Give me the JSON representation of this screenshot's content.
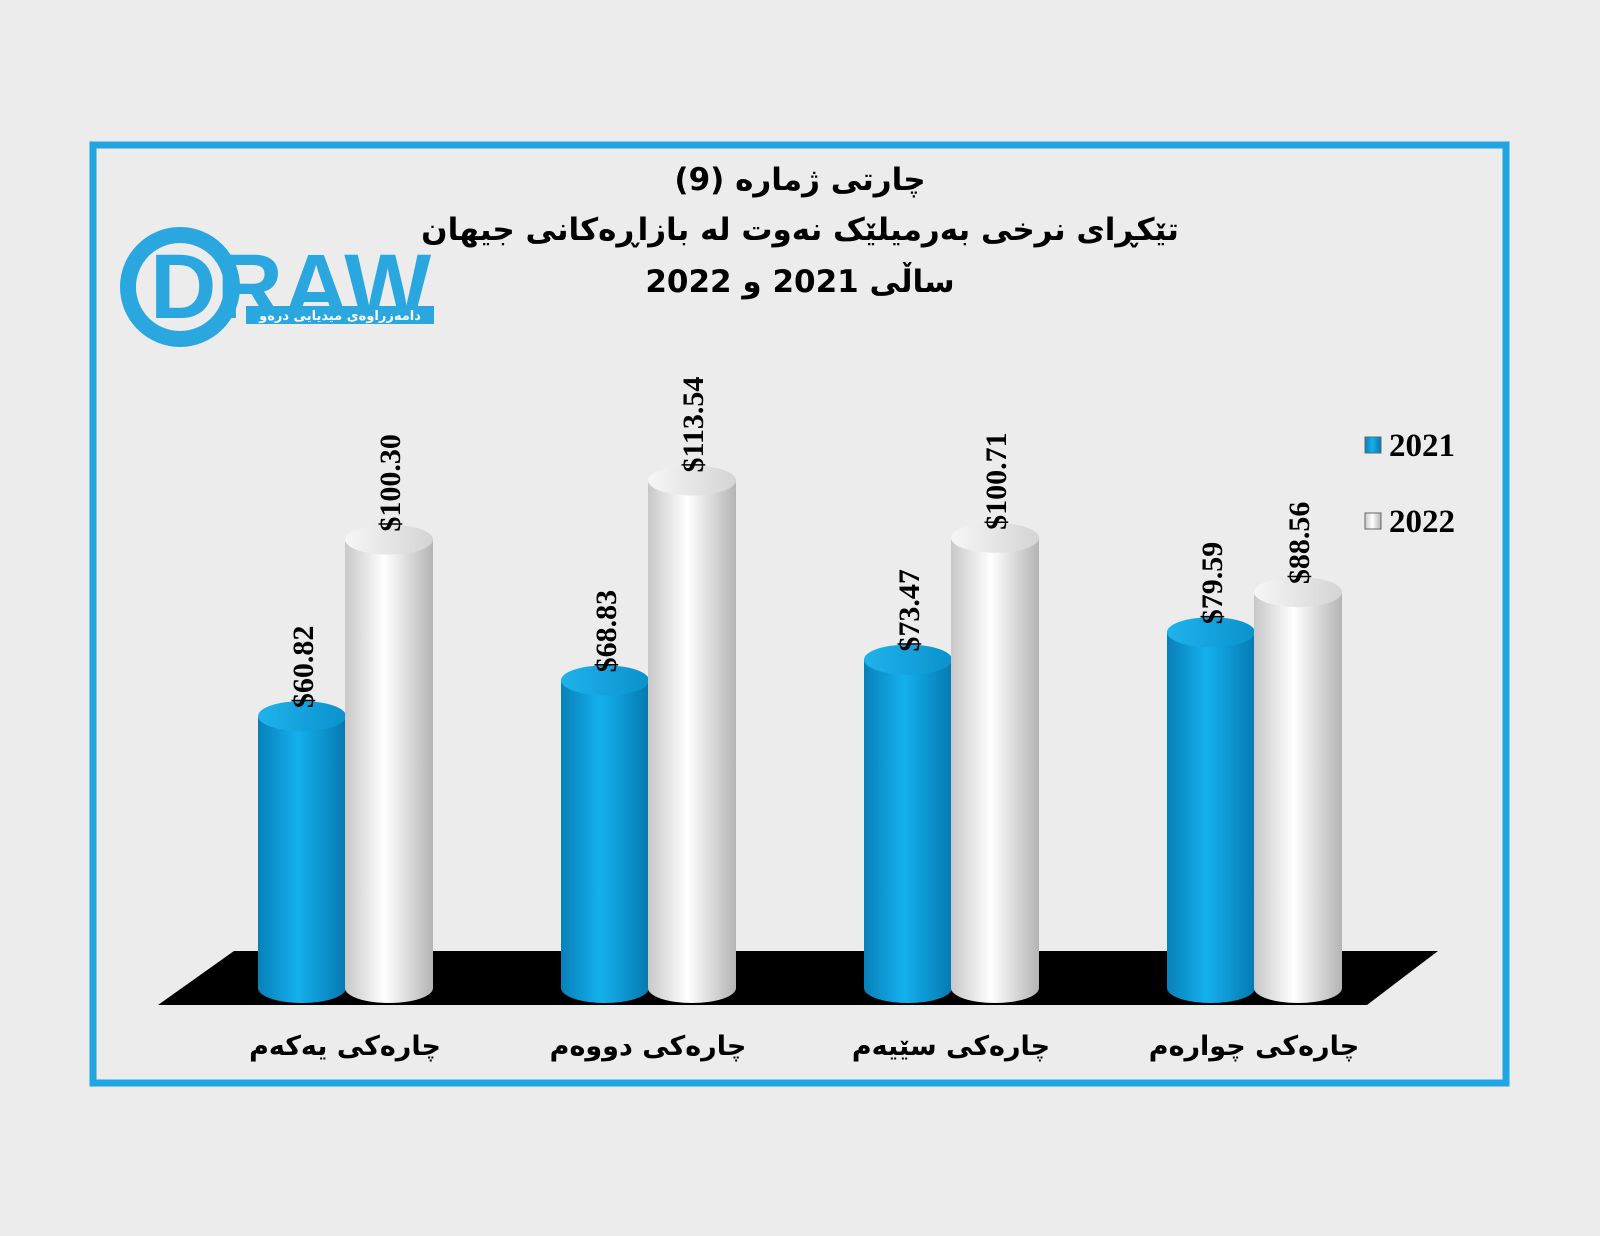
{
  "chart_data": {
    "type": "cylinder-bar",
    "title": [
      "چارتی ژمارە (9)",
      "تێکڕای نرخی بەرمیلێک نەوت لە بازاڕەکانی جیهان",
      "ساڵی 2021 و 2022"
    ],
    "logo": {
      "title": "DRAW",
      "subtitle": "دامەزراوەی میدیایی درەو"
    },
    "categories": [
      "چارەکی یەکەم",
      "چارەکی دووەم",
      "چارەکی سێیەم",
      "چارەکی چوارەم"
    ],
    "series": [
      {
        "name": "2021",
        "color": "#0aa3df",
        "values": [
          60.82,
          68.83,
          73.47,
          79.59
        ],
        "value_labels": [
          "$60.82",
          "$68.83",
          "$73.47",
          "$79.59"
        ]
      },
      {
        "name": "2022",
        "color": "#f2f2f2",
        "values": [
          100.3,
          113.54,
          100.71,
          88.56
        ],
        "value_labels": [
          "$100.30",
          "$113.54",
          "$100.71",
          "$88.56"
        ]
      }
    ],
    "legend": "right"
  }
}
